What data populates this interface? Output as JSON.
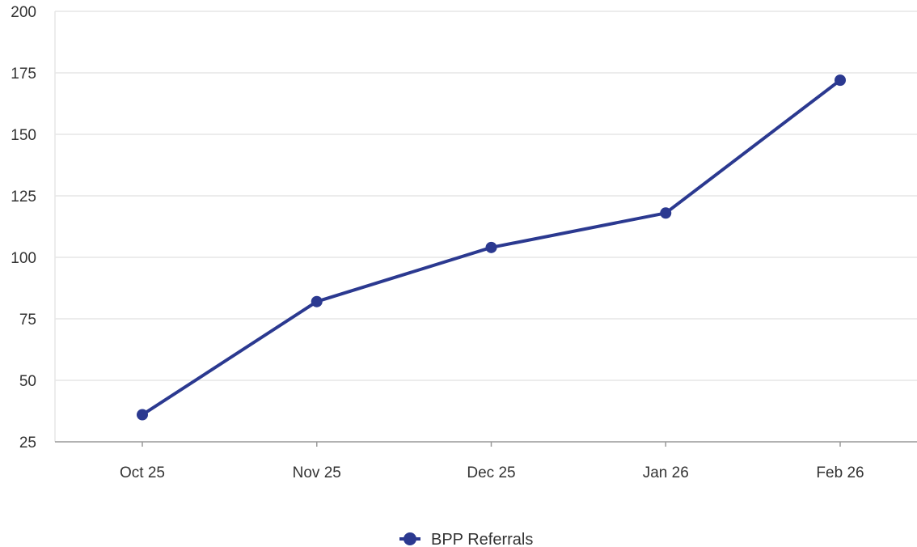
{
  "chart_data": {
    "type": "line",
    "title": "",
    "xlabel": "",
    "ylabel": "",
    "categories": [
      "Oct 25",
      "Nov 25",
      "Dec 25",
      "Jan 26",
      "Feb 26"
    ],
    "series": [
      {
        "name": "BPP Referrals",
        "values": [
          36,
          82,
          104,
          118,
          172
        ],
        "color": "#2b3990"
      }
    ],
    "ylim": [
      25,
      200
    ],
    "yticks": [
      25,
      50,
      75,
      100,
      125,
      150,
      175,
      200
    ],
    "grid": true,
    "legend_position": "bottom-center",
    "gridline_color": "#e6e6e6",
    "axis_color": "#999999"
  }
}
